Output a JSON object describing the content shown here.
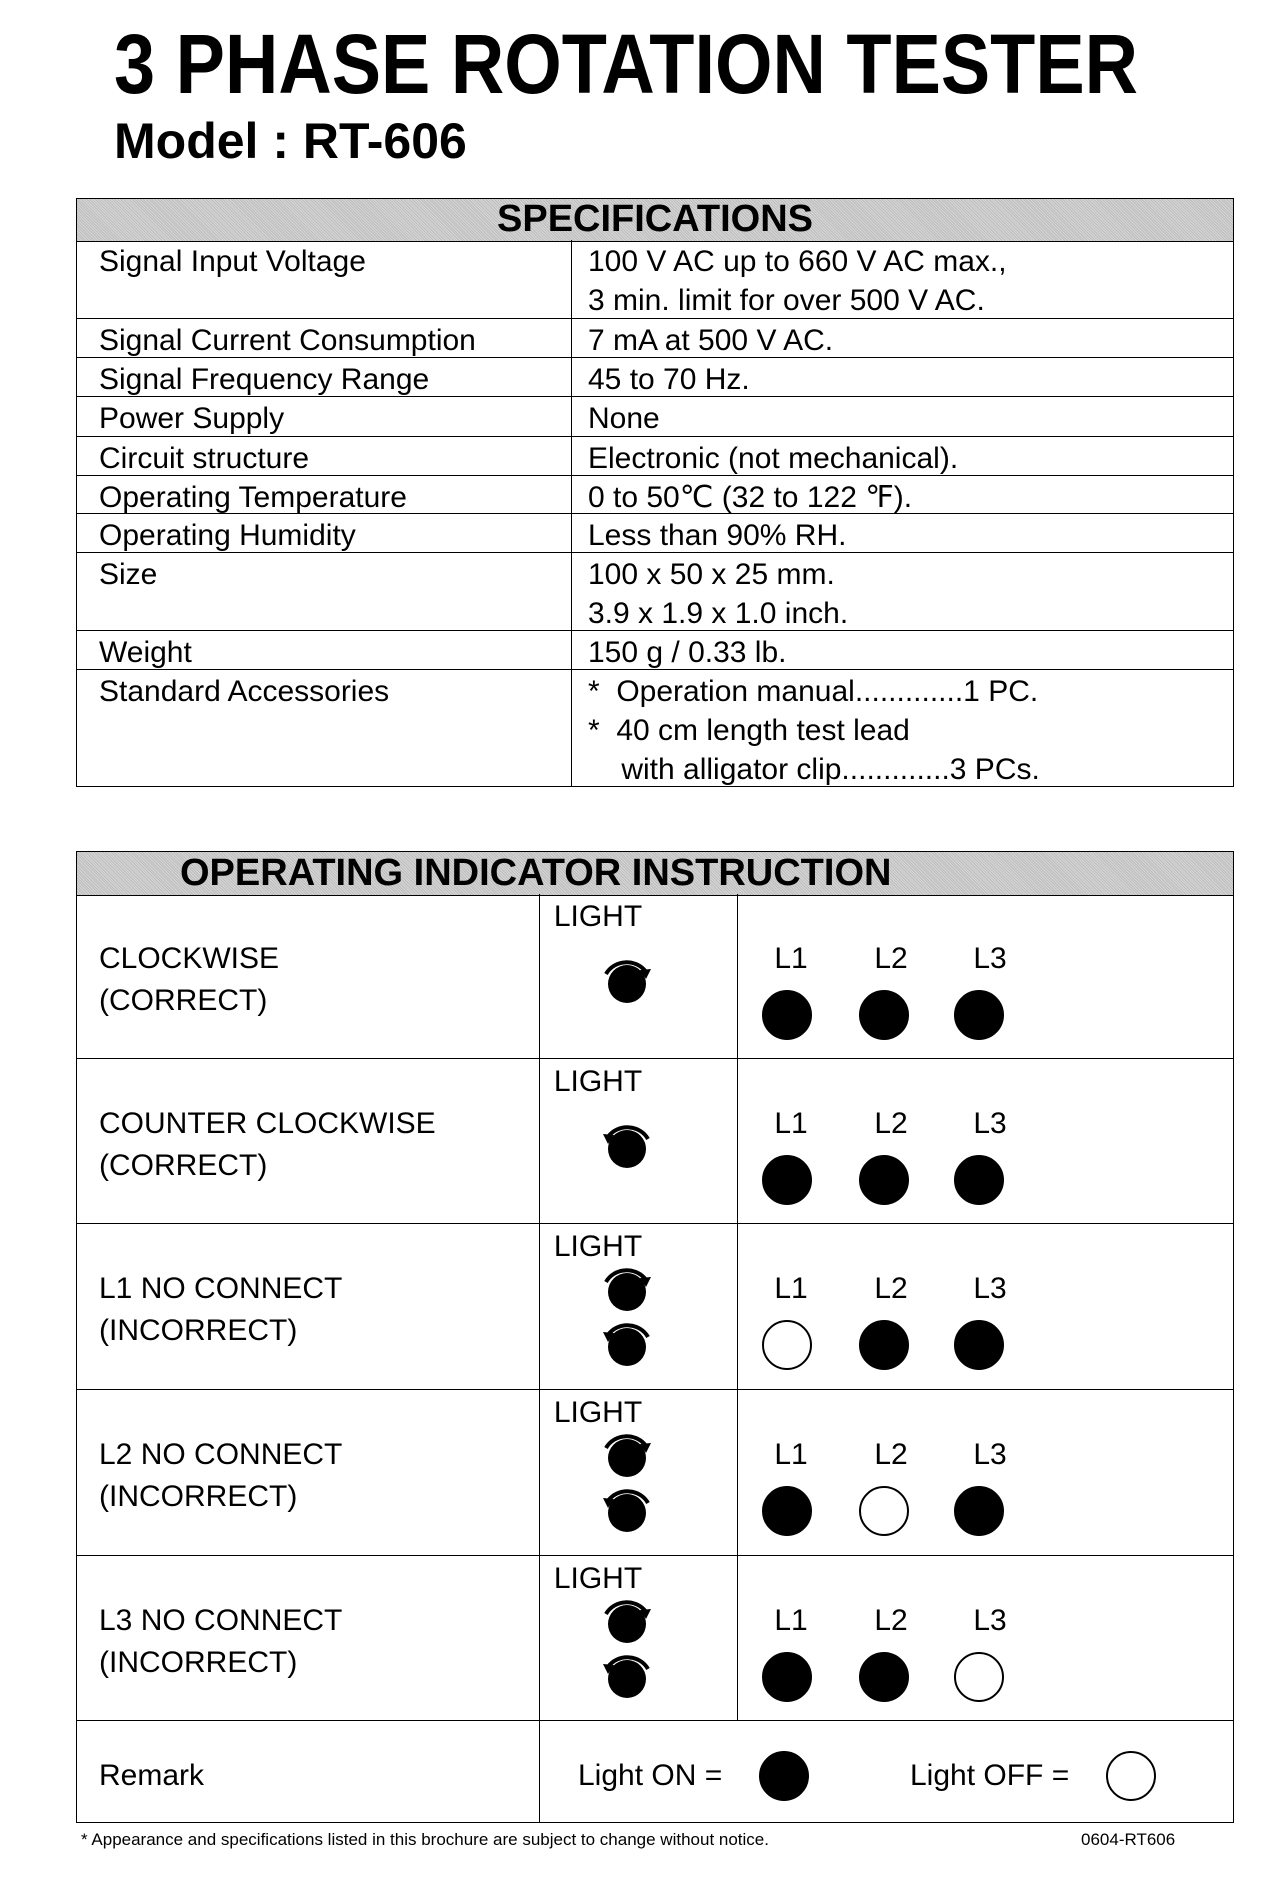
{
  "title": "3 PHASE ROTATION TESTER",
  "model": "Model : RT-606",
  "specifications": {
    "header": "SPECIFICATIONS",
    "rows": [
      {
        "label": "Signal Input Voltage",
        "value": "100 V AC up to 660 V AC max.,\n3 min. limit for over 500 V AC."
      },
      {
        "label": "Signal Current Consumption",
        "value": "7 mA at 500 V AC."
      },
      {
        "label": "Signal Frequency Range",
        "value": "45 to 70 Hz."
      },
      {
        "label": "Power Supply",
        "value": "None"
      },
      {
        "label": "Circuit structure",
        "value": "Electronic (not mechanical)."
      },
      {
        "label": "Operating Temperature",
        "value": "0 to 50℃ (32 to 122 ℉)."
      },
      {
        "label": "Operating Humidity",
        "value": "Less than 90% RH."
      },
      {
        "label": "Size",
        "value": "100 x 50 x 25 mm.\n3.9 x 1.9 x 1.0 inch."
      },
      {
        "label": "Weight",
        "value": "150 g / 0.33 lb."
      },
      {
        "label": "Standard Accessories",
        "value": "*  Operation manual.............1 PC.\n*  40 cm length test lead\n    with alligator clip.............3 PCs."
      }
    ]
  },
  "indicator": {
    "header": "OPERATING INDICATOR INSTRUCTION",
    "light_label": "LIGHT",
    "phase_labels": [
      "L1",
      "L2",
      "L3"
    ],
    "rows": [
      {
        "line1": "CLOCKWISE",
        "line2": "(CORRECT)",
        "rotation": [
          "clockwise"
        ],
        "lights": [
          true,
          true,
          true
        ]
      },
      {
        "line1": "COUNTER CLOCKWISE",
        "line2": "(CORRECT)",
        "rotation": [
          "counter-clockwise"
        ],
        "lights": [
          true,
          true,
          true
        ]
      },
      {
        "line1": "L1  NO CONNECT",
        "line2": "(INCORRECT)",
        "rotation": [
          "clockwise",
          "counter-clockwise"
        ],
        "lights": [
          false,
          true,
          true
        ]
      },
      {
        "line1": "L2  NO CONNECT",
        "line2": "(INCORRECT)",
        "rotation": [
          "clockwise",
          "counter-clockwise"
        ],
        "lights": [
          true,
          false,
          true
        ]
      },
      {
        "line1": "L3  NO CONNECT",
        "line2": "(INCORRECT)",
        "rotation": [
          "clockwise",
          "counter-clockwise"
        ],
        "lights": [
          true,
          true,
          false
        ]
      }
    ],
    "remark": {
      "label": "Remark",
      "on_label": "Light ON =",
      "off_label": "Light OFF ="
    }
  },
  "footer": {
    "note": "* Appearance and specifications listed in this brochure are subject to change without notice.",
    "code": "0604-RT606"
  }
}
